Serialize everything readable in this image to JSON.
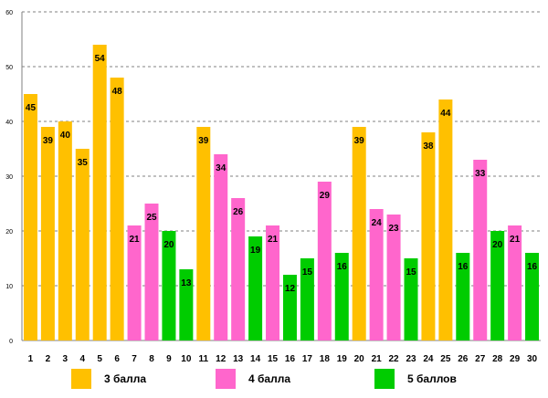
{
  "chart_data": {
    "type": "bar",
    "title": "",
    "xlabel": "",
    "ylabel": "",
    "ylim": [
      0,
      60
    ],
    "yticks": [
      "0",
      "10",
      "20",
      "30",
      "40",
      "50",
      "60"
    ],
    "grid": true,
    "legend_position": "bottom",
    "categories": [
      "1",
      "2",
      "3",
      "4",
      "5",
      "6",
      "7",
      "8",
      "9",
      "10",
      "11",
      "12",
      "13",
      "14",
      "15",
      "16",
      "17",
      "18",
      "19",
      "20",
      "21",
      "22",
      "23",
      "24",
      "25",
      "26",
      "27",
      "28",
      "29",
      "30"
    ],
    "values": [
      45,
      39,
      40,
      35,
      54,
      48,
      21,
      25,
      20,
      13,
      39,
      34,
      26,
      19,
      21,
      12,
      15,
      29,
      16,
      39,
      24,
      23,
      15,
      38,
      44,
      16,
      33,
      20,
      21,
      16
    ],
    "value_labels": [
      "45",
      "39",
      "40",
      "35",
      "54",
      "48",
      "21",
      "25",
      "20",
      "13",
      "39",
      "34",
      "26",
      "19",
      "21",
      "12",
      "15",
      "29",
      "16",
      "39",
      "24",
      "23",
      "15",
      "38",
      "44",
      "16",
      "33",
      "20",
      "21",
      "16"
    ],
    "groups": [
      0,
      0,
      0,
      0,
      0,
      0,
      1,
      1,
      2,
      2,
      0,
      1,
      1,
      2,
      1,
      2,
      2,
      1,
      2,
      0,
      1,
      1,
      2,
      0,
      0,
      2,
      1,
      2,
      1,
      2
    ],
    "series": [
      {
        "name": "3 балла",
        "color": "#FFC000"
      },
      {
        "name": "4 балла",
        "color": "#FF66CC"
      },
      {
        "name": "5 баллов",
        "color": "#00CC00"
      }
    ]
  }
}
